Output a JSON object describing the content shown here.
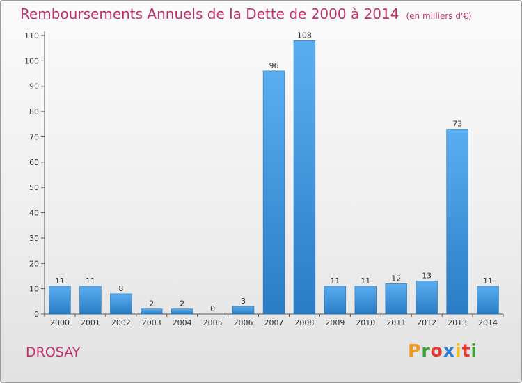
{
  "chart_data": {
    "type": "bar",
    "title": "Remboursements Annuels de la Dette de 2000 à 2014",
    "subtitle": "(en milliers d'€)",
    "categories": [
      "2000",
      "2001",
      "2002",
      "2003",
      "2004",
      "2005",
      "2006",
      "2007",
      "2008",
      "2009",
      "2010",
      "2011",
      "2012",
      "2013",
      "2014"
    ],
    "values": [
      11,
      11,
      8,
      2,
      2,
      0,
      3,
      96,
      108,
      11,
      11,
      12,
      13,
      73,
      11
    ],
    "ylim": [
      0,
      110
    ],
    "yticks": [
      0,
      10,
      20,
      30,
      40,
      50,
      60,
      70,
      80,
      90,
      100,
      110
    ],
    "grid": false,
    "bar_color": "#3a8fd6",
    "title_color": "#c0306a"
  },
  "footer": {
    "city": "DROSAY",
    "logo_text": "Proxiti"
  }
}
